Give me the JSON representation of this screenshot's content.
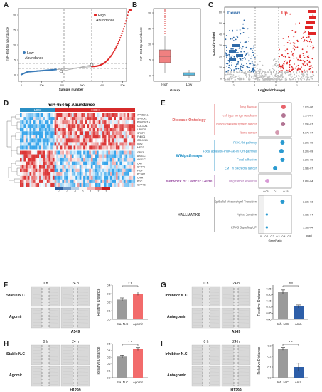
{
  "figure": {
    "panel_labels": [
      "A",
      "B",
      "C",
      "D",
      "E",
      "F",
      "G",
      "H",
      "I"
    ]
  },
  "panel_a": {
    "ylabel": "miR-654-5p abundance",
    "xlabel": "Sample number",
    "low_label_1": "Low",
    "low_label_2": "Abundance",
    "high_label_1": "High",
    "high_label_2": "Abundance",
    "x_ticks": [
      "0",
      "100",
      "200",
      "300",
      "400",
      "500"
    ],
    "y_ticks": [
      "0",
      "5",
      "10",
      "15",
      "20"
    ],
    "low_color": "#3a7bb8",
    "high_color": "#e02525"
  },
  "panel_b": {
    "ylabel": "miR-654-5p abundance",
    "xlabel": "Group",
    "categories": [
      "High",
      "Low"
    ],
    "y_ticks": [
      "0",
      "5",
      "10",
      "15",
      "20"
    ],
    "high_color": "#f08080",
    "low_color": "#5ab4d6"
  },
  "panel_c": {
    "down_label": "Down",
    "up_label": "Up",
    "ylabel": "-Log10(p-value)",
    "xlabel": "Log(FoldChange)",
    "x_ticks": [
      "-2",
      "-1",
      "0",
      "1",
      "2"
    ],
    "y_ticks": [
      "0",
      "10",
      "20",
      "30",
      "40",
      "50",
      "60"
    ],
    "down_color": "#2f6aa8",
    "up_color": "#e02525"
  },
  "panel_d": {
    "title": "miR-654-5p Abundance",
    "group_low": "LOW",
    "group_high": "HIGH",
    "genes": [
      "APCDD1L",
      "SPOCK1",
      "PPAPDC1A",
      "COL11A1",
      "LRRC15",
      "SFRP2",
      "FNDC1",
      "COL12A1",
      "IGF2",
      "MEG3",
      "GPX3",
      "AKR1C1",
      "AKR1C2",
      "CA4",
      "SFTPC",
      "FIGF",
      "PCSK2",
      "CHIA",
      "PGC",
      "CYP4B1"
    ],
    "legend_ticks": [
      "-3",
      "-2",
      "-1",
      "0",
      "1",
      "2",
      "3"
    ]
  },
  "panel_e": {
    "groups": [
      {
        "name": "Disease Ontology",
        "color": "#e05a5a",
        "terms": [
          "lung disease",
          "cell type benign neoplasm",
          "musculoskeletal system cancer",
          "bone cancer"
        ],
        "pvals": [
          "1.02e-06",
          "5.17e-07",
          "2.99e-07",
          "5.17e-07"
        ]
      },
      {
        "name": "Wikipathways",
        "color": "#1e8fc6",
        "terms": [
          "PI3K-Akt-pathway",
          "Focal adhesion-PI3K-Akt-mTOR-pathway",
          "Focal adhesion",
          "EMT in colorectal cancer"
        ],
        "pvals": [
          "3.29e-09",
          "6.20e-09",
          "3.29e-09",
          "2.98e-07"
        ]
      },
      {
        "name": "Network of Cancer Gene",
        "color": "#a05aa8",
        "terms": [
          "lung cancer small cell"
        ],
        "pvals": [
          "6.86e-04"
        ]
      },
      {
        "name": "HALLMARKS",
        "color": "#555555",
        "terms": [
          "Epithelial Mesenchyml Transition",
          "Apical Junction",
          "KRAS Signaling UP"
        ],
        "pvals": [
          "2.23e-63",
          "1.18e-04",
          "1.16e-04"
        ]
      }
    ],
    "xlabel": "GeneRatio",
    "padj_label": "p.adj",
    "x_ticks_top": [
      "0.05",
      "0.1",
      "0.15"
    ],
    "x_ticks_bottom": [
      "0",
      "0.1",
      "0.2",
      "0.3",
      "0.4",
      "0.5"
    ]
  },
  "scratch_panels": [
    {
      "id": "F",
      "row1": "Stable N.C",
      "row2": "Agomir",
      "cell": "A549",
      "c1": "Sta. N.C",
      "c2": "Agomir",
      "v": [
        0.23,
        0.3
      ],
      "e": [
        0.02,
        0.02
      ],
      "sig": "* *",
      "colors": [
        "#9a9a9a",
        "#f26b6b"
      ],
      "yticks": [
        "0.0",
        "0.1",
        "0.2",
        "0.3",
        "0.4"
      ],
      "ymax": 0.4
    },
    {
      "id": "G",
      "row1": "Inhibitor N.C",
      "row2": "Antagomir",
      "cell": "A549",
      "c1": "Inh. N.C",
      "c2": "Anta.",
      "v": [
        0.225,
        0.105
      ],
      "e": [
        0.015,
        0.012
      ],
      "sig": "***",
      "colors": [
        "#9a9a9a",
        "#2d5ea8"
      ],
      "yticks": [
        "0.00",
        "0.05",
        "0.10",
        "0.15",
        "0.20",
        "0.25"
      ],
      "ymax": 0.28
    },
    {
      "id": "H",
      "row1": "Stable N.C",
      "row2": "Agomir",
      "cell": "H1299",
      "c1": "Sta. N.C",
      "c2": "Agomir",
      "v": [
        0.31,
        0.42
      ],
      "e": [
        0.02,
        0.02
      ],
      "sig": "* *",
      "colors": [
        "#9a9a9a",
        "#f26b6b"
      ],
      "yticks": [
        "0.0",
        "0.1",
        "0.2",
        "0.3",
        "0.4",
        "0.5"
      ],
      "ymax": 0.5
    },
    {
      "id": "I",
      "row1": "Inhibitor N.C",
      "row2": "Antagomir",
      "cell": "H1299",
      "c1": "Inh. N.C",
      "c2": "Anta.",
      "v": [
        0.27,
        0.1
      ],
      "e": [
        0.012,
        0.035
      ],
      "sig": "* *",
      "colors": [
        "#9a9a9a",
        "#2d5ea8"
      ],
      "yticks": [
        "0.0",
        "0.1",
        "0.2",
        "0.3"
      ],
      "ymax": 0.32
    }
  ],
  "scratch_common": {
    "time0": "0 h",
    "time24": "24 h",
    "ylabel": "Relative Distance"
  }
}
